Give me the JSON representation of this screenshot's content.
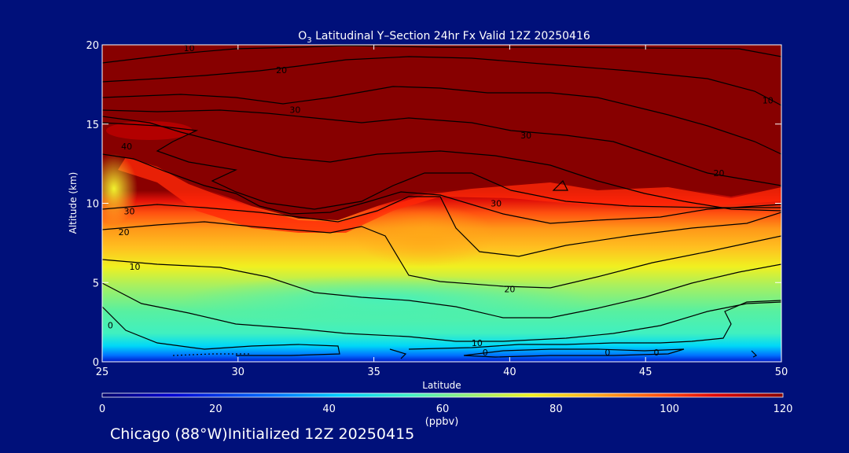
{
  "chart_data": {
    "type": "heatmap",
    "title_prefix": "O",
    "title_subscript": "3",
    "title_rest": " Latitudinal Y–Section 24hr  Fx Valid 12Z 20250416",
    "xlabel": "Latitude",
    "ylabel": "Altitude (km)",
    "xlim": [
      25,
      50
    ],
    "ylim": [
      0,
      20
    ],
    "x_ticks": [
      25,
      30,
      35,
      40,
      45,
      50
    ],
    "y_ticks": [
      0,
      5,
      10,
      15,
      20
    ],
    "colorbar": {
      "label": "(ppbv)",
      "range": [
        0,
        120
      ],
      "ticks": [
        0,
        20,
        40,
        60,
        80,
        100,
        120
      ]
    },
    "contour_labels": [
      {
        "text": "10",
        "x": 28.2,
        "y": 19.8
      },
      {
        "text": "20",
        "x": 31.6,
        "y": 18.4
      },
      {
        "text": "30",
        "x": 32.1,
        "y": 15.9
      },
      {
        "text": "40",
        "x": 25.9,
        "y": 13.6
      },
      {
        "text": "30",
        "x": 26.0,
        "y": 9.5
      },
      {
        "text": "20",
        "x": 25.8,
        "y": 8.2
      },
      {
        "text": "10",
        "x": 26.2,
        "y": 6.0
      },
      {
        "text": "0",
        "x": 25.3,
        "y": 2.3
      },
      {
        "text": "30",
        "x": 39.5,
        "y": 10.0
      },
      {
        "text": "30",
        "x": 40.6,
        "y": 14.3
      },
      {
        "text": "20",
        "x": 47.7,
        "y": 11.9
      },
      {
        "text": "10",
        "x": 49.5,
        "y": 16.5
      },
      {
        "text": "20",
        "x": 40.0,
        "y": 4.6
      },
      {
        "text": "10",
        "x": 38.8,
        "y": 1.2
      },
      {
        "text": "0",
        "x": 39.1,
        "y": 0.6
      },
      {
        "text": "0",
        "x": 43.6,
        "y": 0.6
      },
      {
        "text": "0",
        "x": 45.4,
        "y": 0.6
      }
    ]
  },
  "colors": {
    "background": "#00107a",
    "foreground": "#ffffff",
    "contour": "#000000"
  },
  "footer": "Chicago (88°W)Initialized 12Z 20250415"
}
